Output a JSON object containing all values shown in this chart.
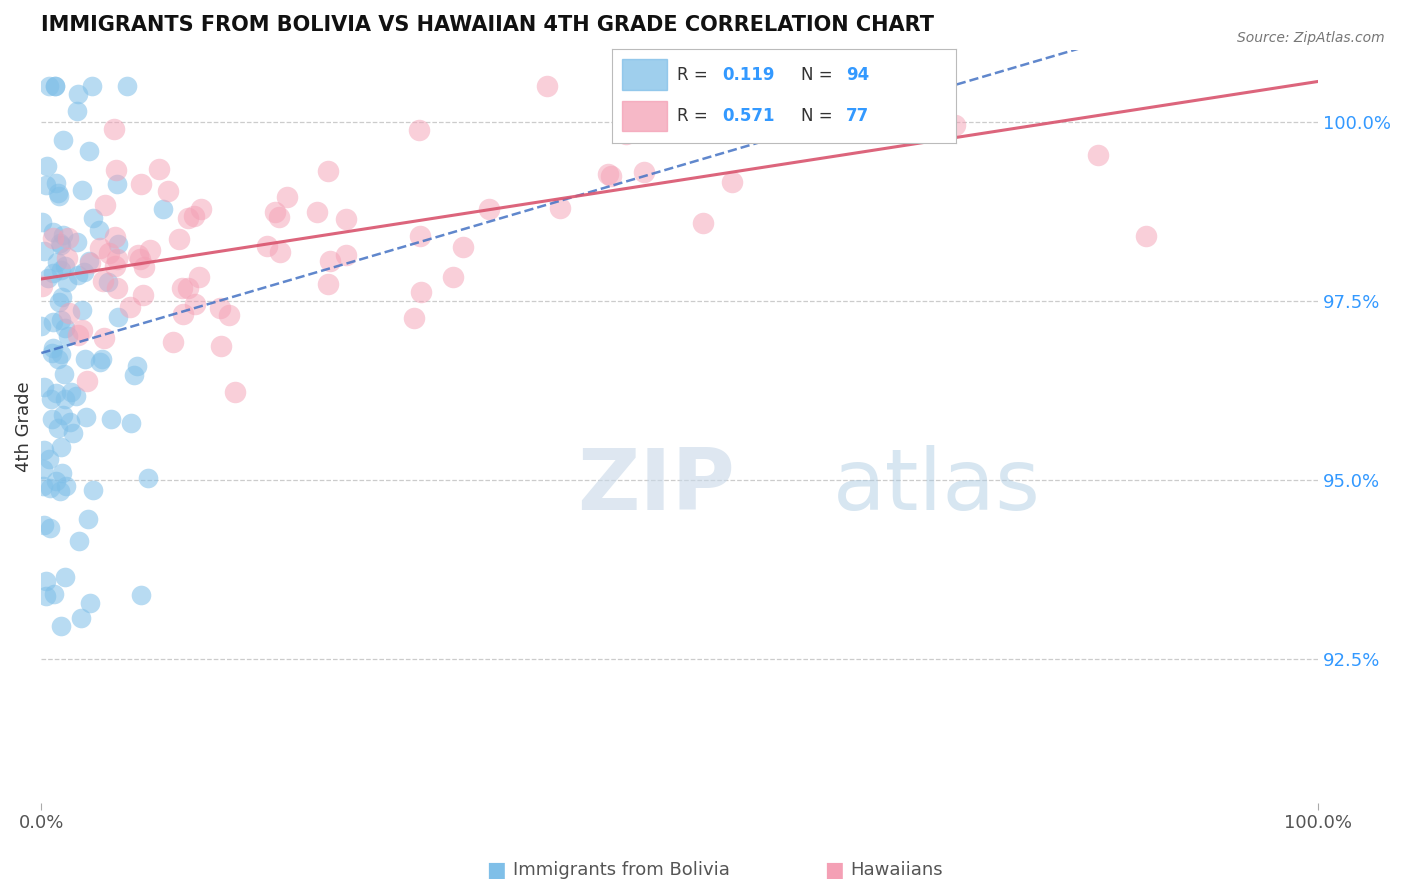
{
  "title": "IMMIGRANTS FROM BOLIVIA VS HAWAIIAN 4TH GRADE CORRELATION CHART",
  "source_text": "Source: ZipAtlas.com",
  "ylabel": "4th Grade",
  "legend_label1": "Immigrants from Bolivia",
  "legend_label2": "Hawaiians",
  "R1": 0.119,
  "N1": 94,
  "R2": 0.571,
  "N2": 77,
  "color_blue": "#7fbfe8",
  "color_pink": "#f4a0b5",
  "line_color_blue": "#4472c4",
  "line_color_pink": "#d9546e",
  "background": "#ffffff",
  "xlim": [
    0.0,
    100.0
  ],
  "ylim": [
    90.5,
    101.0
  ],
  "yticks_right": [
    92.5,
    95.0,
    97.5,
    100.0
  ],
  "ytick_labels_right": [
    "92.5%",
    "95.0%",
    "97.5%",
    "100.0%"
  ],
  "xtick_labels": [
    "0.0%",
    "100.0%"
  ],
  "watermark_zip": "ZIP",
  "watermark_atlas": "atlas",
  "seed": 7
}
